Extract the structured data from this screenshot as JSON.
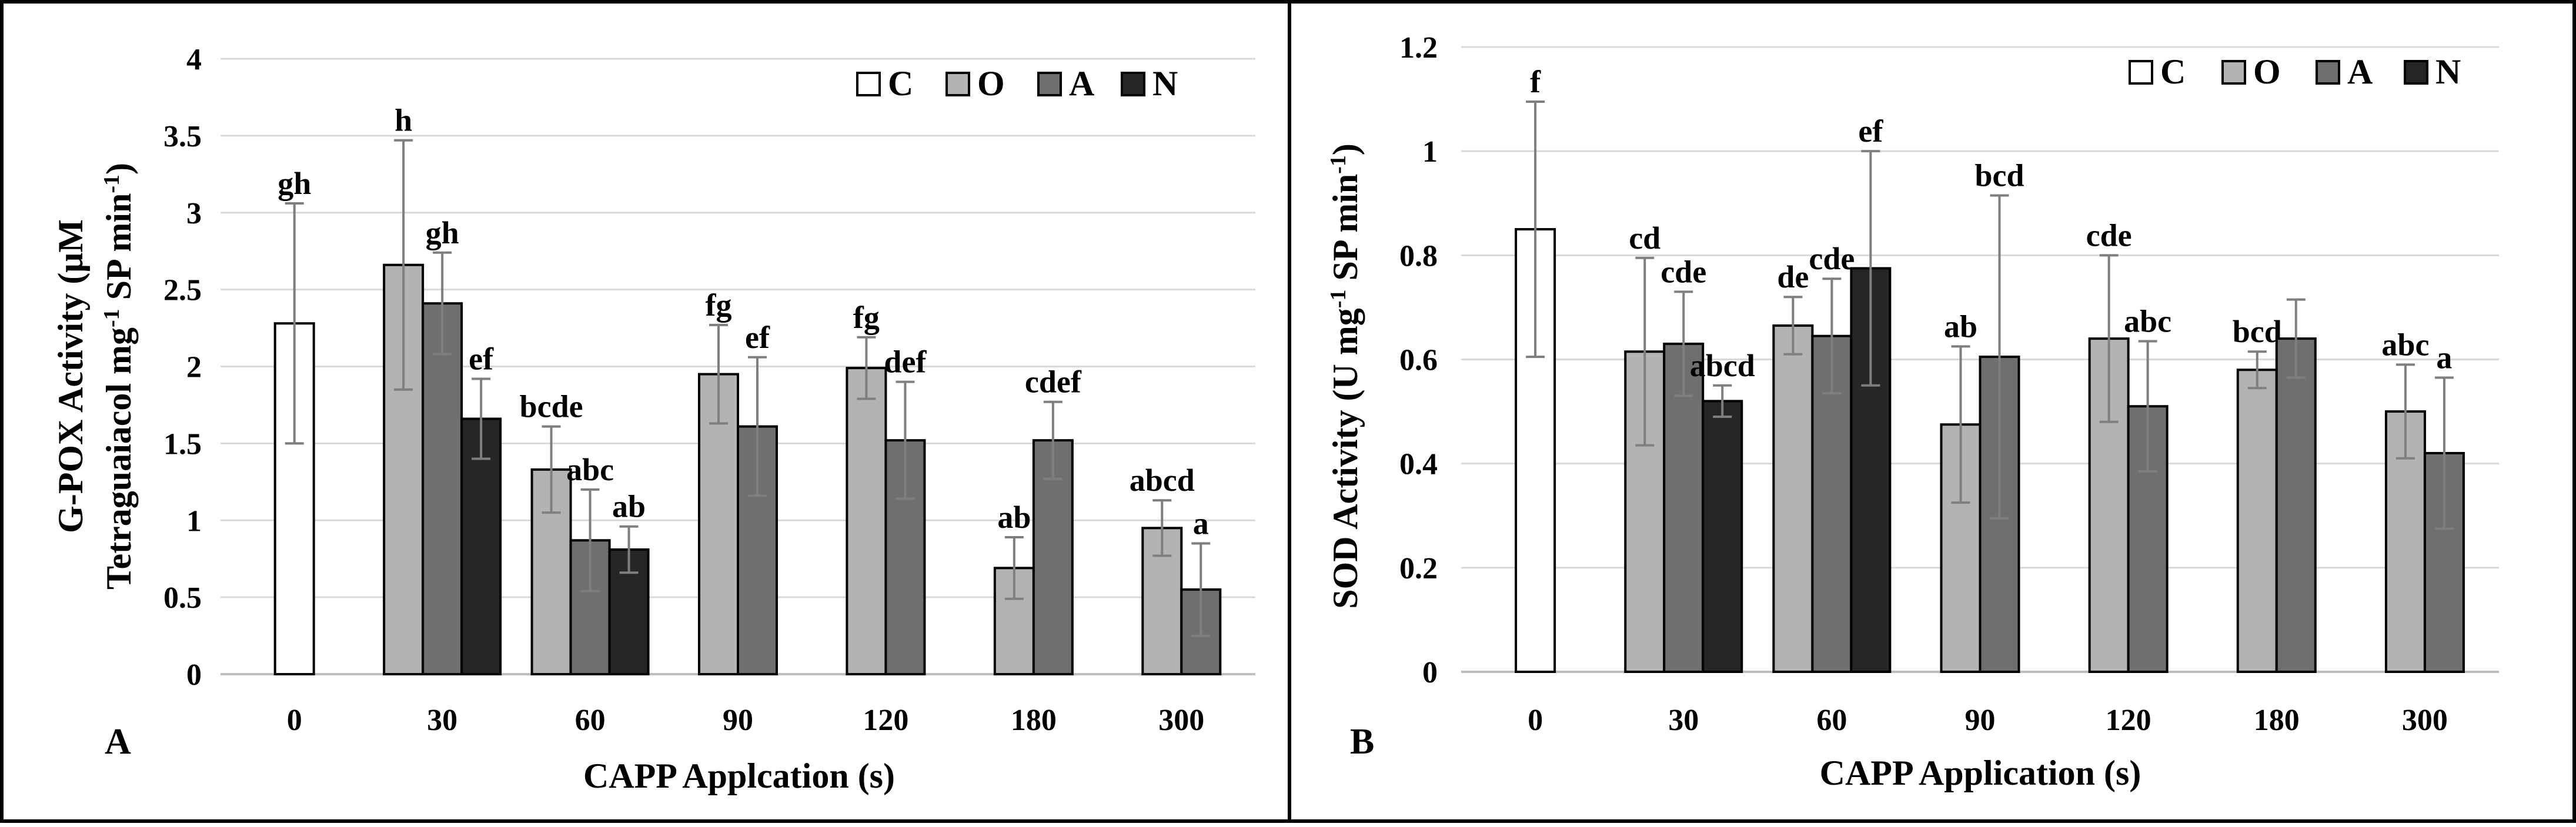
{
  "chart_data": [
    {
      "type": "bar",
      "panel_label": "A",
      "ylabel_line1": "G-POX Activity (μM",
      "ylabel_line2_pre": "Tetraguaiacol mg",
      "ylabel_line2_sup": "-1",
      "ylabel_line2_post": " SP min",
      "ylabel_line2_sup2": "-1",
      "ylabel_line2_end": ")",
      "xlabel": "CAPP Applcation (s)",
      "ylim": [
        0,
        4
      ],
      "yticks": [
        {
          "value": 0,
          "label": "0"
        },
        {
          "value": 0.5,
          "label": "0.5"
        },
        {
          "value": 1,
          "label": "1"
        },
        {
          "value": 1.5,
          "label": "1.5"
        },
        {
          "value": 2,
          "label": "2"
        },
        {
          "value": 2.5,
          "label": "2.5"
        },
        {
          "value": 3,
          "label": "3"
        },
        {
          "value": 3.5,
          "label": "3.5"
        },
        {
          "value": 4,
          "label": "4"
        }
      ],
      "categories": [
        "0",
        "30",
        "60",
        "90",
        "120",
        "180",
        "300"
      ],
      "series": [
        {
          "name": "C",
          "values": [
            2.28,
            null,
            null,
            null,
            null,
            null,
            null
          ],
          "errors": [
            0.78,
            null,
            null,
            null,
            null,
            null,
            null
          ],
          "letters": [
            "gh",
            null,
            null,
            null,
            null,
            null,
            null
          ]
        },
        {
          "name": "O",
          "values": [
            null,
            2.66,
            1.33,
            1.95,
            1.99,
            0.69,
            0.95
          ],
          "errors": [
            null,
            0.81,
            0.28,
            0.32,
            0.2,
            0.2,
            0.18
          ],
          "letters": [
            null,
            "h",
            "bcde",
            "fg",
            "fg",
            "ab",
            "abcd"
          ]
        },
        {
          "name": "A",
          "values": [
            null,
            2.41,
            0.87,
            1.61,
            1.52,
            1.52,
            0.55
          ],
          "errors": [
            null,
            0.33,
            0.33,
            0.45,
            0.38,
            0.25,
            0.3
          ],
          "letters": [
            null,
            "gh",
            "abc",
            "ef",
            "def",
            "cdef",
            "a"
          ]
        },
        {
          "name": "N",
          "values": [
            null,
            1.66,
            0.81,
            null,
            null,
            null,
            null
          ],
          "errors": [
            null,
            0.26,
            0.15,
            null,
            null,
            null,
            null
          ],
          "letters": [
            null,
            "ef",
            "ab",
            null,
            null,
            null,
            null
          ]
        }
      ],
      "legend": [
        "C",
        "O",
        "A",
        "N"
      ]
    },
    {
      "type": "bar",
      "panel_label": "B",
      "ylabel_line1_pre": "SOD Activity (U mg",
      "ylabel_line1_sup": "-1",
      "ylabel_line1_post": " SP min",
      "ylabel_line1_sup2": "-1",
      "ylabel_line1_end": ")",
      "xlabel": "CAPP Application (s)",
      "ylim": [
        0,
        1.2
      ],
      "yticks": [
        {
          "value": 0,
          "label": "0"
        },
        {
          "value": 0.2,
          "label": "0.2"
        },
        {
          "value": 0.4,
          "label": "0.4"
        },
        {
          "value": 0.6,
          "label": "0.6"
        },
        {
          "value": 0.8,
          "label": "0.8"
        },
        {
          "value": 1,
          "label": "1"
        },
        {
          "value": 1.2,
          "label": "1.2"
        }
      ],
      "categories": [
        "0",
        "30",
        "60",
        "90",
        "120",
        "180",
        "300"
      ],
      "series": [
        {
          "name": "C",
          "values": [
            0.85,
            null,
            null,
            null,
            null,
            null,
            null
          ],
          "errors": [
            0.245,
            null,
            null,
            null,
            null,
            null,
            null
          ],
          "letters": [
            "f",
            null,
            null,
            null,
            null,
            null,
            null
          ]
        },
        {
          "name": "O",
          "values": [
            null,
            0.615,
            0.665,
            0.475,
            0.64,
            0.58,
            0.5
          ],
          "errors": [
            null,
            0.18,
            0.055,
            0.15,
            0.16,
            0.035,
            0.09
          ],
          "letters": [
            null,
            "cd",
            "de",
            "ab",
            "cde",
            "bcd",
            "abc"
          ]
        },
        {
          "name": "A",
          "values": [
            null,
            0.63,
            0.645,
            0.605,
            0.51,
            0.64,
            0.42
          ],
          "errors": [
            null,
            0.1,
            0.11,
            0.31,
            0.125,
            0.075,
            0.145
          ],
          "letters": [
            null,
            "cde",
            "cde",
            "bcd",
            "abc",
            null,
            "a"
          ]
        },
        {
          "name": "N",
          "values": [
            null,
            0.52,
            0.775,
            null,
            null,
            null,
            null
          ],
          "errors": [
            null,
            0.03,
            0.225,
            null,
            null,
            null,
            null
          ],
          "letters": [
            null,
            "abcd",
            "ef",
            null,
            null,
            null,
            null
          ]
        }
      ],
      "legend": [
        "C",
        "O",
        "A",
        "N"
      ]
    }
  ],
  "colors": {
    "C": "#ffffff",
    "O": "#b3b3b3",
    "A": "#6f6f6f",
    "N": "#262626",
    "grid": "#d9d9d9",
    "error": "#7f7f7f"
  }
}
